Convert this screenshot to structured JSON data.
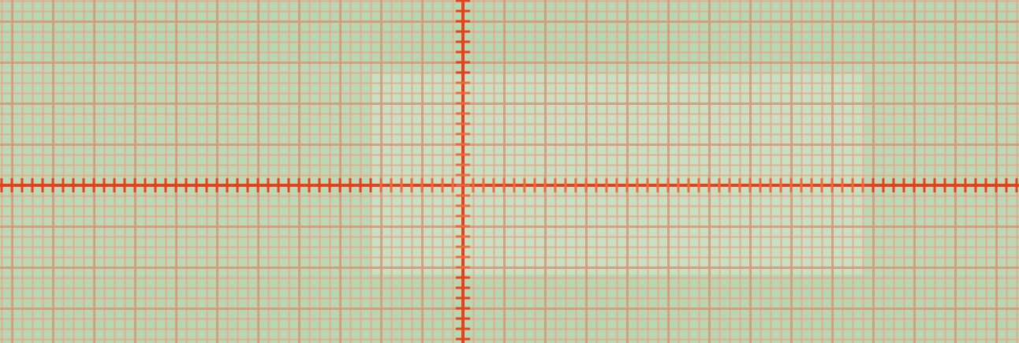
{
  "background": {
    "paper_color": "#b8d6b0",
    "minor_grid_color": "#e3a98c",
    "major_grid_color": "#d79a7c",
    "axis_color": "#e8401a",
    "axis_color_light": "#f0683f",
    "highlight_color": "#ffffff"
  }
}
